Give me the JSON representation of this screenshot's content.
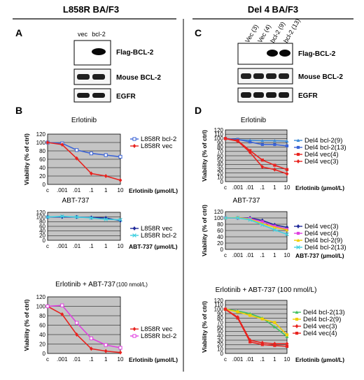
{
  "left_header": "L858R BA/F3",
  "right_header": "Del 4 BA/F3",
  "panel_a": {
    "label": "A",
    "lanes": [
      "vec",
      "bcl-2"
    ],
    "blots": [
      "Flag-BCL-2",
      "Mouse BCL-2",
      "EGFR"
    ]
  },
  "panel_c": {
    "label": "C",
    "lanes": [
      "Vec (3)",
      "Vec (4)",
      "bcl-2 (9)",
      "bcl-2 (13)"
    ],
    "blots": [
      "Flag-BCL-2",
      "Mouse BCL-2",
      "EGFR"
    ]
  },
  "panel_b": {
    "label": "B"
  },
  "panel_d": {
    "label": "D"
  },
  "colors": {
    "red": "#e8231f",
    "blue": "#3b63d6",
    "magenta": "#e040e0",
    "cyan": "#40d0e0",
    "yellow": "#f0d000",
    "green": "#40c060",
    "navy": "#202a9a",
    "plot_bg": "#c4c4c4"
  },
  "chart_data": [
    {
      "id": "b1",
      "type": "line",
      "title": "Erlotinib",
      "ylabel": "Viability (% of ctrl)",
      "xlabel": "Erlotinib (µmol/L)",
      "categories": [
        "c",
        ".001",
        ".01",
        ".1",
        "1",
        "10"
      ],
      "ylim": [
        0,
        120
      ],
      "yticks": [
        0,
        20,
        40,
        60,
        80,
        100,
        120
      ],
      "grid": true,
      "legend": "right",
      "series": [
        {
          "name": "L858R bcl-2",
          "color": "#3b63d6",
          "marker": "square-open",
          "values": [
            100,
            98,
            82,
            74,
            70,
            66
          ]
        },
        {
          "name": "L858R vec",
          "color": "#e8231f",
          "marker": "diamond",
          "values": [
            100,
            95,
            62,
            26,
            20,
            10
          ]
        }
      ]
    },
    {
      "id": "b2",
      "type": "line",
      "title": "ABT-737",
      "ylabel": "",
      "xlabel": "ABT-737 (µmol/L)",
      "categories": [
        "c",
        ".001",
        ".01",
        ".1",
        "1",
        "10"
      ],
      "ylim": [
        0,
        120
      ],
      "yticks": [
        0,
        20,
        40,
        60,
        80,
        100,
        120
      ],
      "grid": true,
      "legend": "right",
      "series": [
        {
          "name": "L858R vec",
          "color": "#202a9a",
          "marker": "diamond",
          "values": [
            100,
            100,
            100,
            98,
            96,
            84
          ]
        },
        {
          "name": "L858R bcl-2",
          "color": "#40d0e0",
          "marker": "x",
          "values": [
            100,
            103,
            100,
            96,
            90,
            88
          ]
        }
      ]
    },
    {
      "id": "b3",
      "type": "line",
      "title": "Erlotinib + ABT-737",
      "title_suffix": "(100 nmol/L)",
      "ylabel": "Viability (% of ctrl)",
      "xlabel": "Erlotinib (µmol/L)",
      "categories": [
        "c",
        ".001",
        ".01",
        ".1",
        "1",
        "10"
      ],
      "ylim": [
        0,
        120
      ],
      "yticks": [
        0,
        20,
        40,
        60,
        80,
        100,
        120
      ],
      "grid": true,
      "legend": "right",
      "series": [
        {
          "name": "L858R vec",
          "color": "#e8231f",
          "marker": "diamond",
          "values": [
            100,
            83,
            40,
            10,
            5,
            2
          ]
        },
        {
          "name": "L858R bcl-2",
          "color": "#e040e0",
          "marker": "square-open",
          "values": [
            100,
            102,
            65,
            32,
            18,
            12
          ]
        }
      ]
    },
    {
      "id": "d1",
      "type": "line",
      "title": "Erlotinib",
      "ylabel": "Viability (% of ctrl)",
      "xlabel": "Erlotinib (µmol/L)",
      "categories": [
        "c",
        ".001",
        ".01",
        ".1",
        "1",
        "10"
      ],
      "ylim": [
        0,
        120
      ],
      "yticks": [
        0,
        10,
        20,
        30,
        40,
        50,
        60,
        70,
        80,
        90,
        100,
        110,
        120
      ],
      "grid": true,
      "legend": "right",
      "series": [
        {
          "name": "Del4 bcl-2(9)",
          "color": "#3b8ad6",
          "marker": "triangle",
          "values": [
            100,
            97,
            96,
            95,
            95,
            94
          ]
        },
        {
          "name": "Del4 bcl-2(13)",
          "color": "#3b63d6",
          "marker": "square",
          "values": [
            100,
            98,
            92,
            86,
            86,
            83
          ]
        },
        {
          "name": "Del4 vec(4)",
          "color": "#e8231f",
          "marker": "square",
          "values": [
            100,
            95,
            72,
            50,
            38,
            28
          ]
        },
        {
          "name": "Del4 vec(3)",
          "color": "#e8231f",
          "marker": "diamond",
          "values": [
            100,
            94,
            68,
            34,
            28,
            18
          ]
        }
      ]
    },
    {
      "id": "d2",
      "type": "line",
      "title": "ABT-737",
      "ylabel": "Viability (% of ctrl)",
      "xlabel": "ABT-737 (µmol/L)",
      "categories": [
        "c",
        ".001",
        ".01",
        ".1",
        "1",
        "10"
      ],
      "ylim": [
        0,
        120
      ],
      "yticks": [
        0,
        20,
        40,
        60,
        80,
        100,
        120
      ],
      "grid": true,
      "legend": "right",
      "series": [
        {
          "name": "Del4 vec(3)",
          "color": "#202a9a",
          "marker": "diamond",
          "values": [
            100,
            100,
            100,
            92,
            78,
            70
          ]
        },
        {
          "name": "Del4 vec(4)",
          "color": "#e040e0",
          "marker": "square",
          "values": [
            100,
            100,
            98,
            88,
            74,
            64
          ]
        },
        {
          "name": "Del4 bcl-2(9)",
          "color": "#f0d000",
          "marker": "triangle",
          "values": [
            100,
            101,
            96,
            82,
            70,
            62
          ]
        },
        {
          "name": "Del4 bcl-2(13)",
          "color": "#40d0e0",
          "marker": "x",
          "values": [
            100,
            100,
            94,
            78,
            62,
            48
          ]
        }
      ]
    },
    {
      "id": "d3",
      "type": "line",
      "title": "Erlotinib + ABT-737 (100 nmol/L)",
      "ylabel": "Viability (% of ctrl)",
      "xlabel": "Erlotinib (µmol/L)",
      "categories": [
        "c",
        ".001",
        ".01",
        ".1",
        "1",
        "10"
      ],
      "ylim": [
        0,
        120
      ],
      "yticks": [
        0,
        10,
        20,
        30,
        40,
        50,
        60,
        70,
        80,
        90,
        100,
        110,
        120
      ],
      "grid": true,
      "legend": "right",
      "series": [
        {
          "name": "Del4 bcl-2(13)",
          "color": "#40c060",
          "marker": "triangle",
          "values": [
            100,
            96,
            90,
            80,
            60,
            38
          ]
        },
        {
          "name": "Del4 bcl-2(9)",
          "color": "#f0d000",
          "marker": "square",
          "values": [
            100,
            94,
            86,
            78,
            70,
            42
          ]
        },
        {
          "name": "Del4 vec(3)",
          "color": "#e8231f",
          "marker": "diamond",
          "values": [
            100,
            82,
            30,
            24,
            22,
            22
          ]
        },
        {
          "name": "Del4 vec(4)",
          "color": "#e8231f",
          "marker": "square",
          "values": [
            100,
            80,
            26,
            20,
            18,
            16
          ]
        }
      ]
    }
  ]
}
